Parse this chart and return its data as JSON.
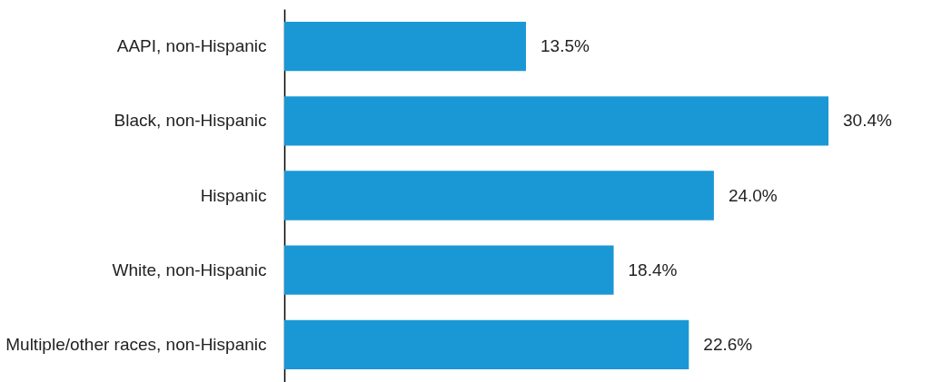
{
  "chart_data": {
    "type": "bar",
    "orientation": "horizontal",
    "relative": false,
    "categories": [
      "AAPI, non-Hispanic",
      "Black, non-Hispanic",
      "Hispanic",
      "White, non-Hispanic",
      "Multiple/other races, non-Hispanic"
    ],
    "values": [
      13.5,
      30.4,
      24.0,
      18.4,
      22.6
    ],
    "value_labels": [
      "13.5%",
      "30.4%",
      "24.0%",
      "18.4%",
      "22.6%"
    ],
    "color": "#1a98d5"
  }
}
